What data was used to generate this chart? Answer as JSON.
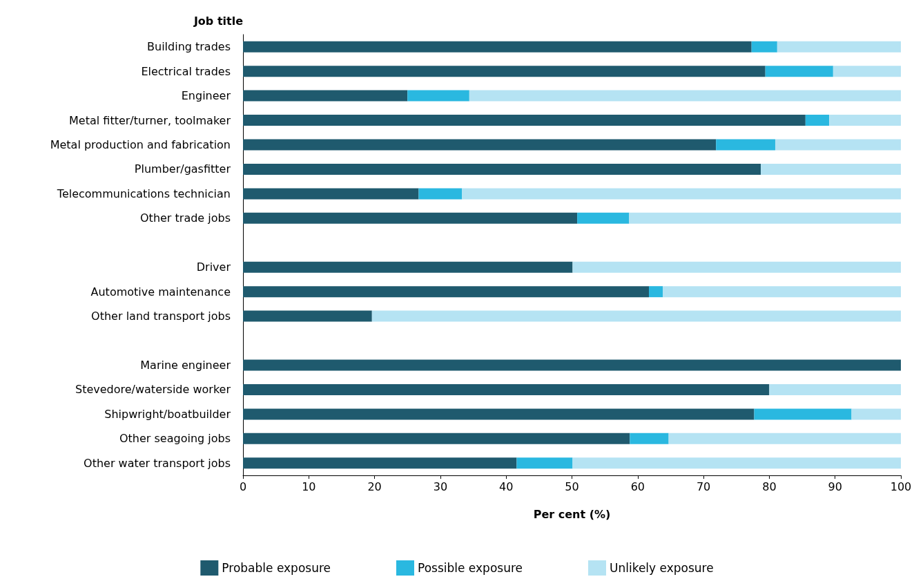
{
  "chart_data": {
    "type": "bar",
    "orientation": "horizontal",
    "stacked": true,
    "ylabel": "Job title",
    "xlabel": "Per cent (%)",
    "categories": [
      "Building trades",
      "Electrical trades",
      "Engineer",
      "Metal fitter/turner, toolmaker",
      "Metal production and fabrication",
      "Plumber/gasfitter",
      "Telecommunications technician",
      "Other trade jobs",
      null,
      "Driver",
      "Automotive maintenance",
      "Other land transport jobs",
      null,
      "Marine engineer",
      "Stevedore/waterside worker",
      "Shipwright/boatbuilder",
      "Other seagoing jobs",
      "Other water transport jobs"
    ],
    "series": [
      {
        "name": "Probable exposure",
        "color": "#1f5a6e",
        "values": [
          77.3,
          79.4,
          25.0,
          85.5,
          71.9,
          78.7,
          26.7,
          50.8,
          null,
          50.1,
          61.7,
          19.6,
          null,
          100,
          80.0,
          77.7,
          58.8,
          41.6
        ]
      },
      {
        "name": "Possible exposure",
        "color": "#2ab8e0",
        "values": [
          3.9,
          10.3,
          9.4,
          3.6,
          9.0,
          0,
          6.6,
          7.9,
          null,
          0,
          2.1,
          0,
          null,
          0,
          0,
          14.8,
          5.9,
          8.5
        ]
      },
      {
        "name": "Unlikely exposure",
        "color": "#b5e3f3",
        "values": [
          18.8,
          10.3,
          65.6,
          10.9,
          19.1,
          21.3,
          66.7,
          41.3,
          null,
          49.9,
          36.2,
          80.4,
          null,
          0,
          20.0,
          7.5,
          35.3,
          49.9
        ]
      }
    ],
    "xlim": [
      0,
      100
    ],
    "xticks": [
      0,
      10,
      20,
      30,
      40,
      50,
      60,
      70,
      80,
      90,
      100
    ],
    "grid": false,
    "legend": "bottom"
  }
}
